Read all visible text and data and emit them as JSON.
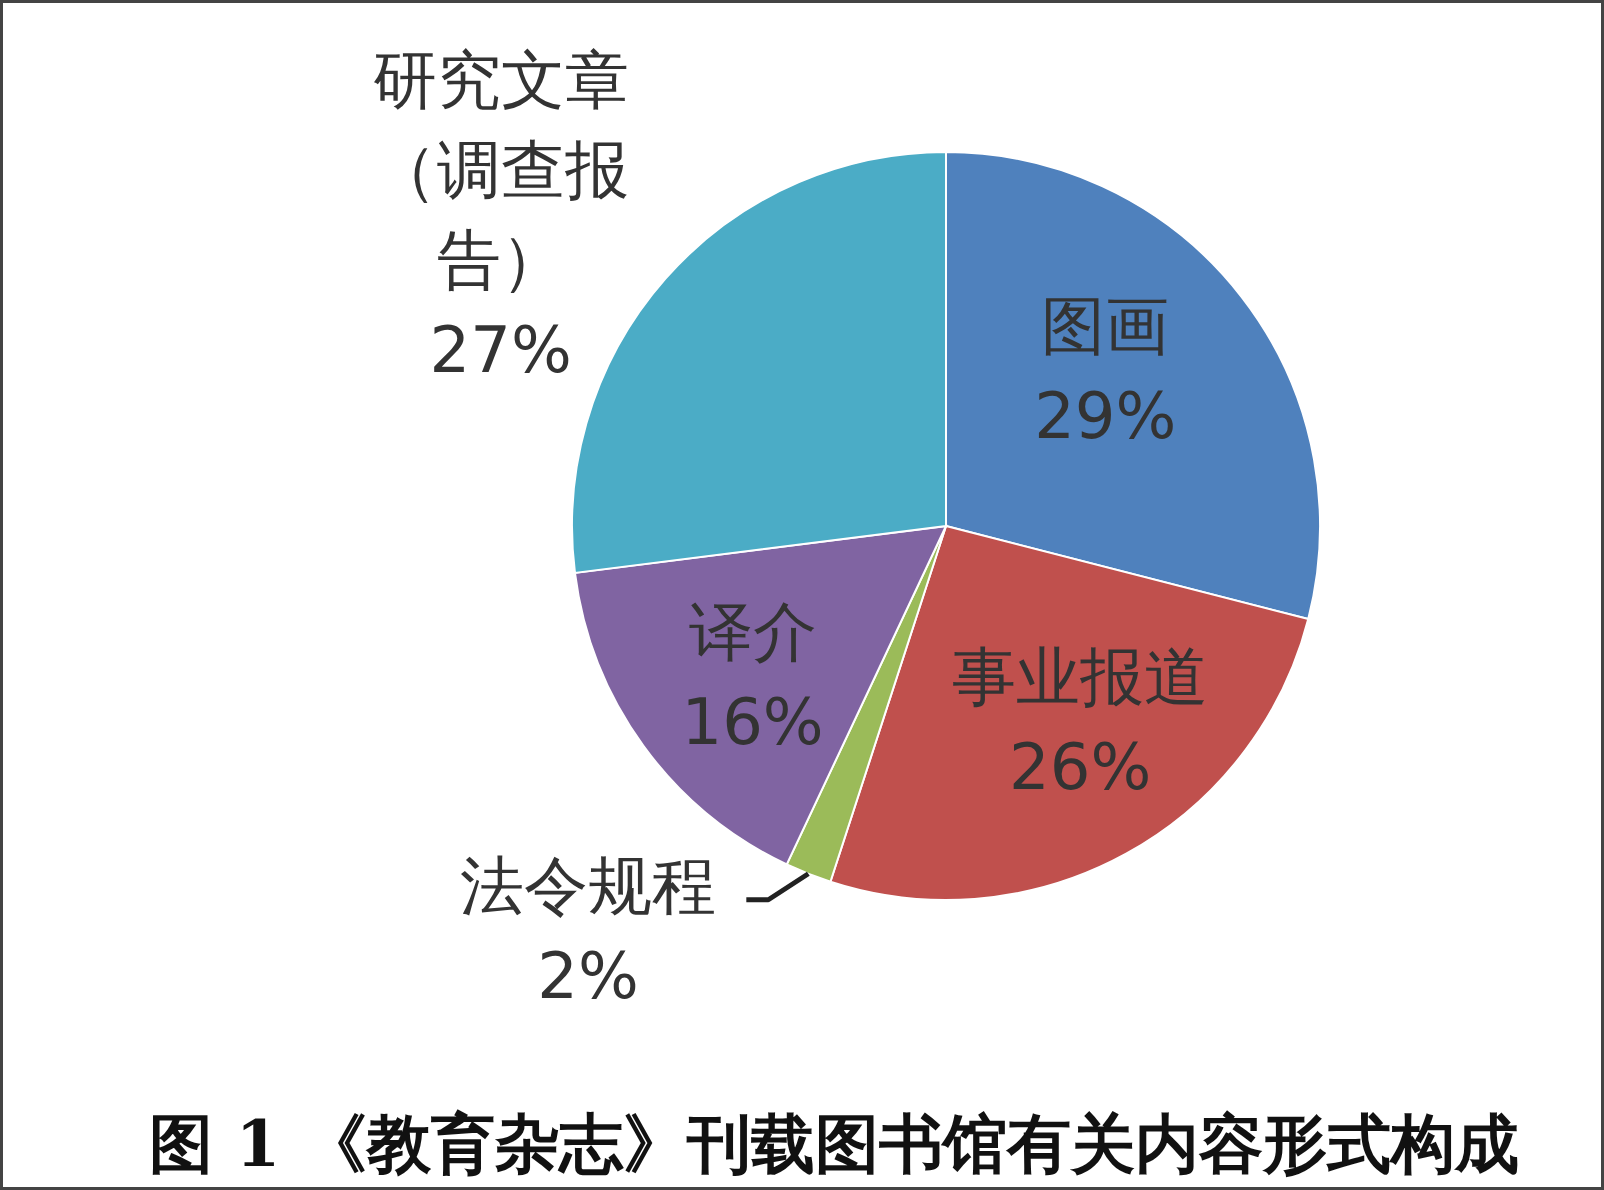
{
  "chart_data": {
    "type": "pie",
    "title": "图 1  《教育杂志》刊载图书馆有关内容形式构成",
    "categories": [
      "图画",
      "事业报道",
      "法令规程",
      "译介",
      "研究文章（调查报告）"
    ],
    "values": [
      29,
      26,
      2,
      16,
      27
    ],
    "colors": [
      "#4f81bd",
      "#c0504d",
      "#9bbb59",
      "#8064a2",
      "#4bacc6"
    ],
    "value_labels": [
      "29%",
      "26%",
      "2%",
      "16%",
      "27%"
    ]
  }
}
